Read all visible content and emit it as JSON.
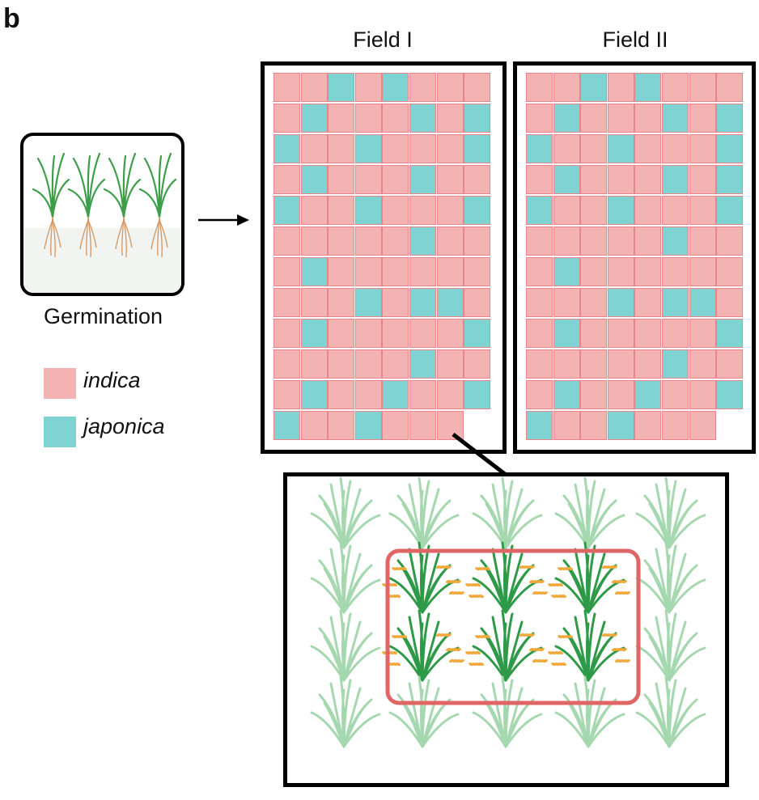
{
  "panel_letter": "b",
  "fields": [
    {
      "title": "Field I",
      "rows": [
        "iijijiii",
        "ijiiijij",
        "jiijiiij",
        "ijiiijii",
        "jiijiiij",
        "iiiiijii",
        "ijiiiiii",
        "iiijijji",
        "ijiiiiij",
        "iiiiijii",
        "ijiijiij",
        "jiijiii"
      ]
    },
    {
      "title": "Field II",
      "rows": [
        "iijijiii",
        "ijiiijij",
        "jiijiiij",
        "ijiiijij",
        "jiijiiij",
        "iiiiijii",
        "ijiiiiii",
        "iiijijji",
        "ijiiiiij",
        "iiiiijii",
        "ijiijiij",
        "jiijiii"
      ]
    }
  ],
  "germination": {
    "label": "Germination",
    "seedling_count": 4
  },
  "legend": {
    "indica_label": "indica",
    "japonica_label": "japonica",
    "indica_color": "#f4b3b3",
    "japonica_color": "#7fd3d3"
  },
  "zoom": {
    "rows": 4,
    "cols": 5,
    "highlight_rows": [
      1,
      2
    ],
    "highlight_cols": [
      1,
      2,
      3
    ],
    "faded_plant_color": "#a6d8b0",
    "focus_plant_color": "#2e9a48",
    "panicle_color": "#f2a93b",
    "highlight_border_color": "#e06666"
  }
}
